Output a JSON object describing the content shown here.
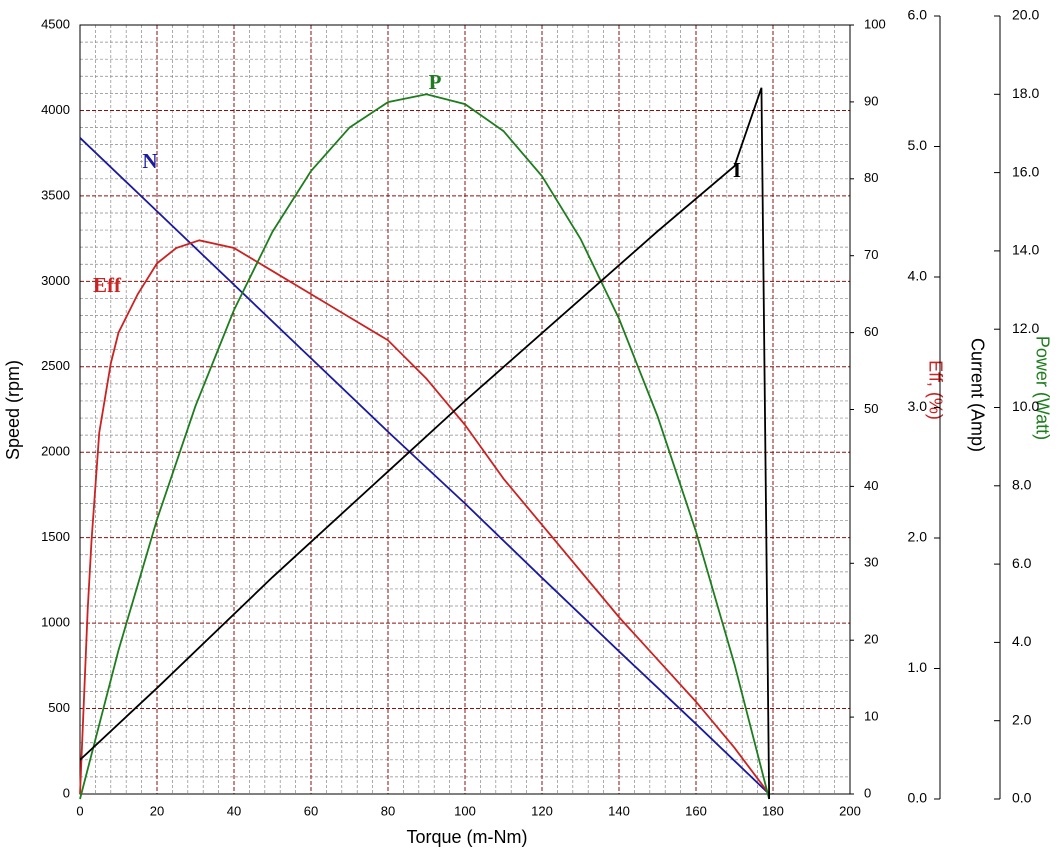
{
  "chart_data": {
    "type": "line",
    "xlabel": "Torque (m-Nm)",
    "ylabel": "Speed (rpm)",
    "y2label": "Eff, (%)",
    "y3label": "Current (Amp)",
    "y4label": "Power (Watt)",
    "xlim": [
      0,
      200
    ],
    "xticks": [
      0,
      20,
      40,
      60,
      80,
      100,
      120,
      140,
      160,
      180,
      200
    ],
    "ylim": [
      0,
      4500
    ],
    "yticks": [
      0,
      500,
      1000,
      1500,
      2000,
      2500,
      3000,
      3500,
      4000,
      4500
    ],
    "y2lim": [
      0,
      100
    ],
    "y2ticks": [
      0,
      10,
      20,
      30,
      40,
      50,
      60,
      70,
      80,
      90,
      100
    ],
    "y3lim": [
      0,
      6
    ],
    "y3ticks": [
      {
        "value": 0,
        "label": "0.0"
      },
      {
        "value": 1,
        "label": "1.0"
      },
      {
        "value": 2,
        "label": "2.0"
      },
      {
        "value": 3,
        "label": "3.0"
      },
      {
        "value": 4,
        "label": "4.0"
      },
      {
        "value": 5,
        "label": "5.0"
      },
      {
        "value": 6,
        "label": "6.0"
      }
    ],
    "y4lim": [
      0,
      20
    ],
    "y4ticks": [
      {
        "value": 0,
        "label": "0.0"
      },
      {
        "value": 2,
        "label": "2.0"
      },
      {
        "value": 4,
        "label": "4.0"
      },
      {
        "value": 6,
        "label": "6.0"
      },
      {
        "value": 8,
        "label": "8.0"
      },
      {
        "value": 10,
        "label": "10.0"
      },
      {
        "value": 12,
        "label": "12.0"
      },
      {
        "value": 14,
        "label": "14.0"
      },
      {
        "value": 16,
        "label": "16.0"
      },
      {
        "value": 18,
        "label": "18.0"
      },
      {
        "value": 20,
        "label": "20.0"
      }
    ],
    "grid": true,
    "minor_grid_divisions": 5,
    "series": [
      {
        "name": "N",
        "color": "#1a1aa0",
        "axis": "y",
        "x": [
          0,
          20,
          40,
          60,
          80,
          100,
          120,
          140,
          160,
          179
        ],
        "values": [
          3840,
          3410,
          2980,
          2550,
          2120,
          1700,
          1265,
          835,
          410,
          0
        ]
      },
      {
        "name": "Eff",
        "color": "#cc2222",
        "axis": "y2",
        "x": [
          0,
          1,
          2,
          3,
          5,
          8,
          10,
          15,
          20,
          25,
          31,
          40,
          50,
          60,
          70,
          80,
          90,
          100,
          110,
          120,
          130,
          140,
          150,
          160,
          170,
          179
        ],
        "values": [
          0,
          12,
          24,
          33,
          47,
          56,
          60,
          65,
          69,
          71,
          72,
          71,
          68,
          65,
          62,
          59,
          54,
          48,
          41,
          35,
          29,
          23,
          17.5,
          12,
          6,
          0
        ]
      },
      {
        "name": "P",
        "color": "#1e7d1e",
        "axis": "y4",
        "x": [
          0,
          10,
          20,
          30,
          40,
          50,
          60,
          70,
          80,
          90,
          100,
          110,
          120,
          130,
          140,
          150,
          160,
          170,
          179
        ],
        "values": [
          0,
          3.8,
          7.14,
          10.04,
          12.49,
          14.49,
          16.04,
          17.15,
          17.8,
          18.0,
          17.75,
          17.06,
          15.91,
          14.31,
          12.27,
          9.78,
          6.83,
          3.44,
          0
        ]
      },
      {
        "name": "I",
        "color": "#000000",
        "axis": "y3",
        "x": [
          0,
          20,
          50,
          100,
          150,
          170,
          177,
          179
        ],
        "values": [
          0.3,
          0.85,
          1.7,
          3.05,
          4.35,
          4.85,
          5.45,
          0
        ]
      }
    ]
  }
}
